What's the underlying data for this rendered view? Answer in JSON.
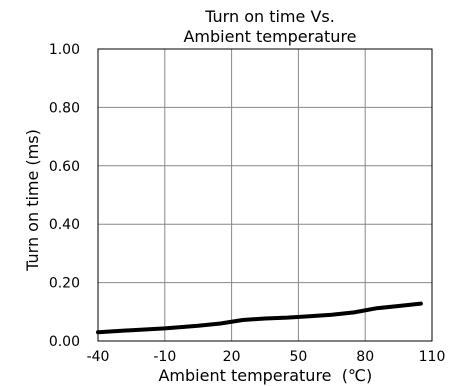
{
  "chart_data": {
    "type": "line",
    "title_lines": [
      "Turn on time Vs.",
      "Ambient temperature"
    ],
    "xlabel": "Ambient temperature",
    "xlabel_unit": "(℃)",
    "ylabel": "Turn on time (ms)",
    "xlim": [
      -40,
      110
    ],
    "ylim": [
      0,
      1.0
    ],
    "x_ticks": [
      -40,
      -10,
      20,
      50,
      80,
      110
    ],
    "y_ticks": [
      0.0,
      0.2,
      0.4,
      0.6,
      0.8,
      1.0
    ],
    "x_tick_labels": [
      "-40",
      "-10",
      "20",
      "50",
      "80",
      "110"
    ],
    "y_tick_labels": [
      "0.00",
      "0.20",
      "0.40",
      "0.60",
      "0.80",
      "1.00"
    ],
    "grid": true,
    "series": [
      {
        "color": "#000000",
        "x": [
          -40,
          -25,
          -10,
          5,
          15,
          25,
          35,
          45,
          55,
          65,
          75,
          85,
          95,
          105
        ],
        "y": [
          0.03,
          0.037,
          0.043,
          0.052,
          0.06,
          0.072,
          0.077,
          0.08,
          0.085,
          0.09,
          0.098,
          0.112,
          0.12,
          0.128
        ]
      }
    ]
  }
}
